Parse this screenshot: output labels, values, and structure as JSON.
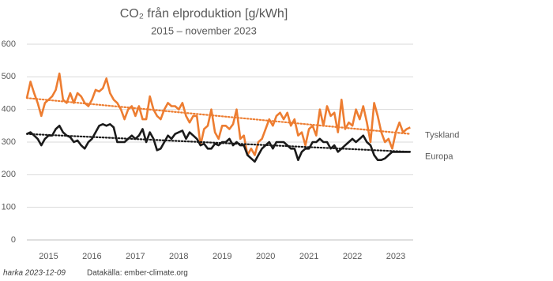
{
  "chart_data": {
    "type": "line",
    "title": "CO₂ från elproduktion [g/kWh]",
    "subtitle": "2015 – november 2023",
    "footer_author": "harka 2023-12-09",
    "footer_source": "Datakälla: ember-climate.org",
    "x": [
      2015,
      2015.083,
      2015.167,
      2015.25,
      2015.333,
      2015.417,
      2015.5,
      2015.583,
      2015.667,
      2015.75,
      2015.833,
      2015.917,
      2016,
      2016.083,
      2016.167,
      2016.25,
      2016.333,
      2016.417,
      2016.5,
      2016.583,
      2016.667,
      2016.75,
      2016.833,
      2016.917,
      2017,
      2017.083,
      2017.167,
      2017.25,
      2017.333,
      2017.417,
      2017.5,
      2017.583,
      2017.667,
      2017.75,
      2017.833,
      2017.917,
      2018,
      2018.083,
      2018.167,
      2018.25,
      2018.333,
      2018.417,
      2018.5,
      2018.583,
      2018.667,
      2018.75,
      2018.833,
      2018.917,
      2019,
      2019.083,
      2019.167,
      2019.25,
      2019.333,
      2019.417,
      2019.5,
      2019.583,
      2019.667,
      2019.75,
      2019.833,
      2019.917,
      2020,
      2020.083,
      2020.167,
      2020.25,
      2020.333,
      2020.417,
      2020.5,
      2020.583,
      2020.667,
      2020.75,
      2020.833,
      2020.917,
      2021,
      2021.083,
      2021.167,
      2021.25,
      2021.333,
      2021.417,
      2021.5,
      2021.583,
      2021.667,
      2021.75,
      2021.833,
      2021.917,
      2022,
      2022.083,
      2022.167,
      2022.25,
      2022.333,
      2022.417,
      2022.5,
      2022.583,
      2022.667,
      2022.75,
      2022.833,
      2022.917,
      2023,
      2023.083,
      2023.167,
      2023.25,
      2023.333,
      2023.417,
      2023.5,
      2023.583,
      2023.667,
      2023.75,
      2023.833
    ],
    "series": [
      {
        "name": "Tyskland",
        "color": "#ed7d31",
        "trend": [
          435,
          325
        ],
        "values": [
          435,
          485,
          450,
          420,
          380,
          420,
          430,
          440,
          460,
          510,
          430,
          420,
          450,
          420,
          450,
          440,
          420,
          410,
          430,
          460,
          455,
          465,
          495,
          450,
          430,
          420,
          400,
          370,
          400,
          410,
          380,
          410,
          370,
          370,
          440,
          400,
          380,
          370,
          400,
          420,
          410,
          410,
          400,
          420,
          380,
          360,
          380,
          380,
          290,
          340,
          350,
          400,
          330,
          310,
          350,
          350,
          340,
          355,
          400,
          310,
          320,
          260,
          280,
          260,
          300,
          310,
          340,
          370,
          350,
          380,
          390,
          370,
          390,
          350,
          370,
          320,
          330,
          290,
          340,
          350,
          320,
          400,
          350,
          410,
          380,
          390,
          330,
          430,
          340,
          360,
          350,
          400,
          370,
          410,
          360,
          300,
          420,
          380,
          330,
          300,
          310,
          280,
          330,
          360,
          330,
          340,
          345
        ]
      },
      {
        "name": "Europa",
        "color": "#1a1a1a",
        "trend": [
          325,
          270
        ],
        "values": [
          325,
          330,
          320,
          310,
          290,
          310,
          320,
          320,
          340,
          350,
          330,
          320,
          315,
          300,
          305,
          290,
          280,
          300,
          310,
          330,
          350,
          355,
          350,
          355,
          345,
          300,
          300,
          300,
          310,
          320,
          310,
          320,
          340,
          300,
          330,
          310,
          275,
          280,
          300,
          320,
          310,
          325,
          330,
          335,
          310,
          330,
          320,
          310,
          290,
          295,
          280,
          280,
          295,
          290,
          300,
          300,
          310,
          290,
          300,
          290,
          290,
          260,
          250,
          240,
          260,
          280,
          290,
          300,
          280,
          300,
          300,
          300,
          290,
          280,
          280,
          245,
          270,
          280,
          280,
          300,
          300,
          310,
          300,
          300,
          280,
          290,
          270,
          280,
          290,
          300,
          310,
          300,
          310,
          320,
          300,
          290,
          260,
          245,
          245,
          250,
          260,
          270,
          270,
          270,
          270,
          270,
          270
        ]
      }
    ],
    "xlim": [
      2015,
      2023.9
    ],
    "xticks": [
      {
        "value": 2015.5,
        "label": "2015"
      },
      {
        "value": 2016.5,
        "label": "2016"
      },
      {
        "value": 2017.5,
        "label": "2017"
      },
      {
        "value": 2018.5,
        "label": "2018"
      },
      {
        "value": 2019.5,
        "label": "2019"
      },
      {
        "value": 2020.5,
        "label": "2020"
      },
      {
        "value": 2021.5,
        "label": "2021"
      },
      {
        "value": 2022.5,
        "label": "2022"
      },
      {
        "value": 2023.5,
        "label": "2023"
      }
    ],
    "ylim": [
      0,
      600
    ],
    "yticks": [
      0,
      100,
      200,
      300,
      400,
      500,
      600
    ],
    "grid": true
  }
}
